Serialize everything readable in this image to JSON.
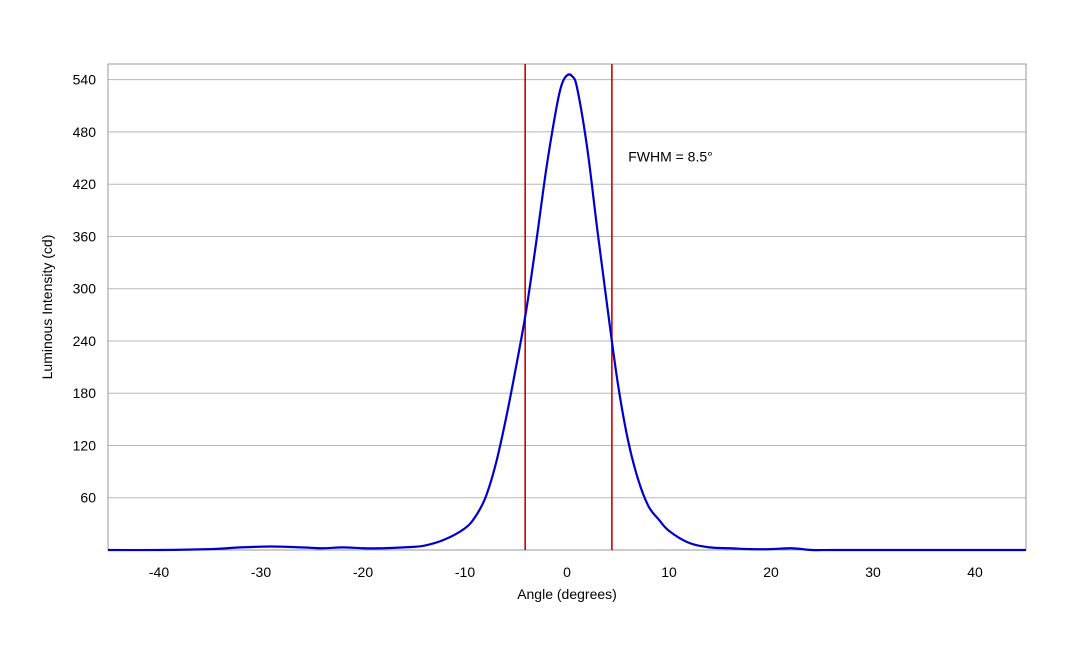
{
  "chart_data": {
    "type": "line",
    "title": "",
    "xlabel": "Angle (degrees)",
    "ylabel": "Luminous Intensity (cd)",
    "xlim": [
      -45,
      45
    ],
    "ylim": [
      0,
      558
    ],
    "x_ticks": [
      -40,
      -30,
      -20,
      -10,
      0,
      10,
      20,
      30,
      40
    ],
    "y_ticks": [
      60,
      120,
      180,
      240,
      300,
      360,
      420,
      480,
      540
    ],
    "grid": "horizontal",
    "legend": "none",
    "series": [
      {
        "color": "#0000cc",
        "x": [
          -45,
          -40,
          -35,
          -32,
          -29,
          -26,
          -24,
          -22,
          -20,
          -18,
          -16,
          -14,
          -12,
          -10,
          -9,
          -8,
          -7,
          -6,
          -5,
          -4,
          -3,
          -2,
          -1,
          -0.5,
          0,
          0.5,
          1,
          2,
          3,
          4,
          5,
          6,
          7,
          8,
          9,
          10,
          12,
          14,
          16,
          18,
          20,
          22,
          24,
          26,
          30,
          35,
          40,
          45
        ],
        "y": [
          0,
          0,
          1,
          3,
          4,
          3,
          2,
          3,
          2,
          2,
          3,
          5,
          12,
          25,
          38,
          60,
          98,
          150,
          210,
          275,
          355,
          440,
          510,
          535,
          545,
          544,
          530,
          460,
          365,
          275,
          190,
          125,
          80,
          50,
          35,
          22,
          8,
          3,
          2,
          1,
          1,
          2,
          0,
          0,
          0,
          0,
          0,
          0
        ]
      }
    ],
    "vlines": [
      {
        "x": -4.1,
        "color": "#cc0000"
      },
      {
        "x": 4.4,
        "color": "#cc0000"
      }
    ],
    "annotations": [
      {
        "text": "FWHM = 8.5°",
        "x": 6,
        "y": 452
      }
    ]
  }
}
